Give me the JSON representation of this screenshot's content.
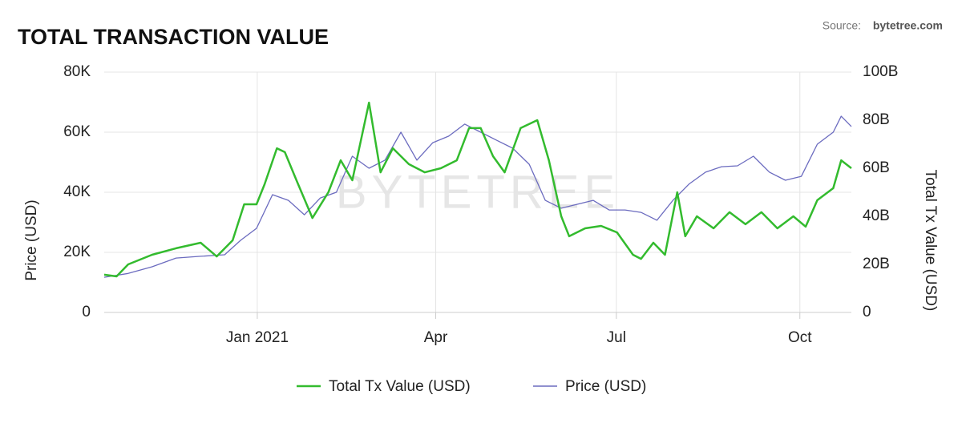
{
  "chart_data": {
    "type": "line",
    "title": "TOTAL TRANSACTION VALUE",
    "source_label": "Source:",
    "source": "bytetree.com",
    "watermark": "BYTETREE",
    "y_label": "Price (USD)",
    "y2_label": "Total Tx Value (USD)",
    "grid": true,
    "legend": "bottom",
    "xlim": [
      2020.789,
      2021.819
    ],
    "xticks": [
      {
        "value": 2021.0,
        "label": "Jan 2021"
      },
      {
        "value": 2021.246,
        "label": "Apr"
      },
      {
        "value": 2021.495,
        "label": "Jul"
      },
      {
        "value": 2021.748,
        "label": "Oct"
      }
    ],
    "ylim": [
      0,
      80000
    ],
    "yticks": [
      0,
      {
        "value": 20000,
        "label": "20K"
      },
      {
        "value": 40000,
        "label": "40K"
      },
      {
        "value": 60000,
        "label": "60K"
      },
      {
        "value": 80000,
        "label": "80K"
      }
    ],
    "y2lim": [
      0,
      100000000000
    ],
    "y2ticks": [
      0,
      {
        "value": 20000000000,
        "label": "20B"
      },
      {
        "value": 40000000000,
        "label": "40B"
      },
      {
        "value": 60000000000,
        "label": "60B"
      },
      {
        "value": 80000000000,
        "label": "80B"
      },
      {
        "value": 100000000000,
        "label": "100B"
      }
    ],
    "series": [
      {
        "name": "Total Tx Value (USD)",
        "color": "#33bb2e",
        "axis": "y2",
        "x": [
          2020.789,
          2020.806,
          2020.822,
          2020.855,
          2020.888,
          2020.922,
          2020.944,
          2020.966,
          2020.982,
          2020.999,
          2021.01,
          2021.027,
          2021.038,
          2021.054,
          2021.076,
          2021.098,
          2021.115,
          2021.131,
          2021.154,
          2021.17,
          2021.187,
          2021.209,
          2021.231,
          2021.253,
          2021.275,
          2021.292,
          2021.308,
          2021.325,
          2021.341,
          2021.363,
          2021.386,
          2021.402,
          2021.419,
          2021.43,
          2021.452,
          2021.474,
          2021.496,
          2021.518,
          2021.529,
          2021.546,
          2021.562,
          2021.579,
          2021.59,
          2021.606,
          2021.629,
          2021.651,
          2021.673,
          2021.695,
          2021.717,
          2021.739,
          2021.756,
          2021.772,
          2021.794,
          2021.805,
          2021.819
        ],
        "values": [
          15700000000,
          15000000000,
          20000000000,
          24000000000,
          26700000000,
          29000000000,
          23300000000,
          30000000000,
          45000000000,
          45000000000,
          53300000000,
          68300000000,
          66700000000,
          55000000000,
          39300000000,
          50000000000,
          63300000000,
          55000000000,
          87300000000,
          58300000000,
          68300000000,
          61700000000,
          58300000000,
          60000000000,
          63300000000,
          76700000000,
          76700000000,
          65000000000,
          58300000000,
          76700000000,
          80000000000,
          63300000000,
          40000000000,
          31700000000,
          35000000000,
          36000000000,
          33300000000,
          24000000000,
          22300000000,
          29000000000,
          24000000000,
          50000000000,
          31700000000,
          40000000000,
          35000000000,
          41700000000,
          36700000000,
          41700000000,
          35000000000,
          40000000000,
          35700000000,
          46700000000,
          51700000000,
          63300000000,
          60000000000
        ]
      },
      {
        "name": "Price (USD)",
        "color": "#6b6bbf",
        "x": [
          2020.789,
          2020.822,
          2020.855,
          2020.888,
          2020.922,
          2020.955,
          2020.977,
          2020.999,
          2021.021,
          2021.043,
          2021.065,
          2021.087,
          2021.109,
          2021.131,
          2021.154,
          2021.176,
          2021.198,
          2021.22,
          2021.242,
          2021.264,
          2021.286,
          2021.308,
          2021.33,
          2021.352,
          2021.375,
          2021.397,
          2021.419,
          2021.441,
          2021.463,
          2021.485,
          2021.507,
          2021.529,
          2021.551,
          2021.573,
          2021.595,
          2021.618,
          2021.64,
          2021.662,
          2021.684,
          2021.706,
          2021.728,
          2021.75,
          2021.772,
          2021.794,
          2021.805,
          2021.819
        ],
        "values": [
          11700,
          13000,
          15200,
          18100,
          18700,
          19200,
          24000,
          28000,
          39200,
          37300,
          32500,
          38100,
          40000,
          52000,
          48000,
          50700,
          60000,
          50700,
          56500,
          58700,
          62700,
          60000,
          57300,
          54700,
          49300,
          37300,
          34700,
          36000,
          37300,
          34100,
          34100,
          33300,
          30700,
          37300,
          42700,
          46700,
          48500,
          48800,
          52000,
          46700,
          44000,
          45300,
          56000,
          60000,
          65300,
          61900
        ]
      }
    ]
  }
}
